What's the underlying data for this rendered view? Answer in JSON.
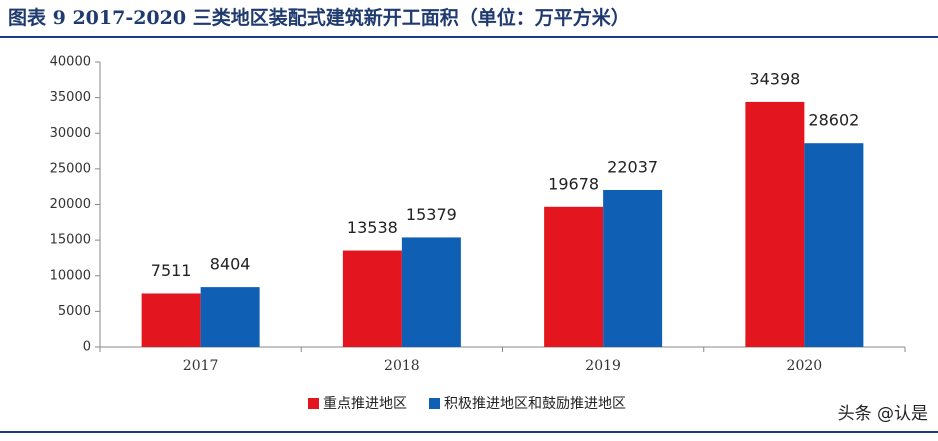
{
  "chart_data": {
    "type": "bar",
    "title": "图表 9  2017-2020 三类地区装配式建筑新开工面积（单位：万平方米）",
    "categories": [
      "2017",
      "2018",
      "2019",
      "2020"
    ],
    "series": [
      {
        "name": "重点推进地区",
        "color": "#e3151f",
        "values": [
          7511,
          13538,
          19678,
          34398
        ]
      },
      {
        "name": "积极推进地区和鼓励推进地区",
        "color": "#0f5fb5",
        "values": [
          8404,
          15379,
          22037,
          28602
        ]
      }
    ],
    "ylim": [
      0,
      40000
    ],
    "yticks": [
      0,
      5000,
      10000,
      15000,
      20000,
      25000,
      30000,
      35000,
      40000
    ],
    "legend": "bottom",
    "watermark": "头条 @认是"
  }
}
